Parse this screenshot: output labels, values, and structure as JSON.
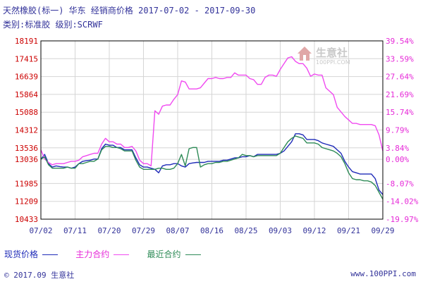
{
  "header": {
    "line1": "天然橡胶(标一)  华东  经销商价格  2017-07-02 - 2017-09-30",
    "line2": "类别:标准胶  级别:SCRWF"
  },
  "watermark": {
    "name": "生意社",
    "url": "100PPI.COM"
  },
  "legend": [
    {
      "label": "现货价格",
      "color": "#1f2bb8",
      "text_color": "#1f2bb8"
    },
    {
      "label": "主力合约",
      "color": "#f04af0",
      "text_color": "#e62ad8"
    },
    {
      "label": "最近合约",
      "color": "#2e8b57",
      "text_color": "#2e8b57"
    }
  ],
  "footer": {
    "left": "© 2017.09 生意社",
    "right": "www.100PPI.com"
  },
  "colors": {
    "frame": "#000000",
    "grid": "#d5d5d5",
    "zero_line": "#d5d5d5",
    "left_axis": "#cc0000",
    "right_axis": "#e62ad8",
    "x_axis": "#33339a"
  },
  "chart_data": {
    "type": "line",
    "x_ticks": [
      "07/02",
      "07/11",
      "07/20",
      "07/29",
      "08/07",
      "08/16",
      "08/25",
      "09/03",
      "09/12",
      "09/21",
      "09/29"
    ],
    "x_days": 90,
    "y_left_ticks": [
      "18191",
      "17415",
      "16639",
      "15864",
      "15088",
      "14312",
      "13536",
      "13036",
      "11985",
      "11209",
      "10433"
    ],
    "y_left_values": [
      18191,
      17415,
      16639,
      15864,
      15088,
      14312,
      13536,
      13036,
      11985,
      11209,
      10433
    ],
    "y_right_ticks": [
      "39.54%",
      "33.59%",
      "27.64%",
      "21.69%",
      "15.74%",
      "9.79%",
      "3.84%",
      "0.00%",
      "-8.07%",
      "-14.02%",
      "-19.97%"
    ],
    "ylim_left": [
      10433,
      18191
    ],
    "series": [
      {
        "name": "现货价格",
        "color": "#1f2bb8",
        "points": [
          [
            0,
            13036
          ],
          [
            1,
            13250
          ],
          [
            2,
            12850
          ],
          [
            3,
            12700
          ],
          [
            4,
            12750
          ],
          [
            5,
            12720
          ],
          [
            6,
            12700
          ],
          [
            7,
            12700
          ],
          [
            8,
            12650
          ],
          [
            9,
            12700
          ],
          [
            10,
            12850
          ],
          [
            11,
            12950
          ],
          [
            12,
            12980
          ],
          [
            13,
            13000
          ],
          [
            14,
            13050
          ],
          [
            15,
            13050
          ],
          [
            16,
            13500
          ],
          [
            17,
            13700
          ],
          [
            18,
            13650
          ],
          [
            19,
            13650
          ],
          [
            20,
            13550
          ],
          [
            21,
            13550
          ],
          [
            22,
            13450
          ],
          [
            23,
            13450
          ],
          [
            24,
            13450
          ],
          [
            25,
            13100
          ],
          [
            26,
            12800
          ],
          [
            27,
            12700
          ],
          [
            28,
            12700
          ],
          [
            29,
            12650
          ],
          [
            30,
            12600
          ],
          [
            31,
            12450
          ],
          [
            32,
            12750
          ],
          [
            33,
            12800
          ],
          [
            34,
            12800
          ],
          [
            35,
            12850
          ],
          [
            36,
            12850
          ],
          [
            37,
            12750
          ],
          [
            38,
            12700
          ],
          [
            39,
            12850
          ],
          [
            40,
            12880
          ],
          [
            41,
            12900
          ],
          [
            42,
            12900
          ],
          [
            43,
            12900
          ],
          [
            44,
            12950
          ],
          [
            45,
            12950
          ],
          [
            46,
            12950
          ],
          [
            47,
            12950
          ],
          [
            48,
            13000
          ],
          [
            49,
            13000
          ],
          [
            50,
            13050
          ],
          [
            51,
            13100
          ],
          [
            52,
            13100
          ],
          [
            53,
            13150
          ],
          [
            54,
            13150
          ],
          [
            55,
            13200
          ],
          [
            56,
            13150
          ],
          [
            57,
            13250
          ],
          [
            58,
            13250
          ],
          [
            59,
            13250
          ],
          [
            60,
            13250
          ],
          [
            61,
            13250
          ],
          [
            62,
            13250
          ],
          [
            63,
            13300
          ],
          [
            64,
            13400
          ],
          [
            65,
            13600
          ],
          [
            66,
            13800
          ],
          [
            67,
            14150
          ],
          [
            68,
            14150
          ],
          [
            69,
            14100
          ],
          [
            70,
            13900
          ],
          [
            71,
            13900
          ],
          [
            72,
            13900
          ],
          [
            73,
            13850
          ],
          [
            74,
            13750
          ],
          [
            75,
            13700
          ],
          [
            76,
            13650
          ],
          [
            77,
            13600
          ],
          [
            78,
            13450
          ],
          [
            79,
            13300
          ],
          [
            80,
            12950
          ],
          [
            81,
            12700
          ],
          [
            82,
            12500
          ],
          [
            83,
            12450
          ],
          [
            84,
            12400
          ],
          [
            85,
            12400
          ],
          [
            86,
            12400
          ],
          [
            87,
            12400
          ],
          [
            88,
            12200
          ],
          [
            89,
            11700
          ],
          [
            90,
            11500
          ]
        ]
      },
      {
        "name": "主力合约",
        "color": "#f04af0",
        "points": [
          [
            0,
            13450
          ],
          [
            1,
            13050
          ],
          [
            2,
            12900
          ],
          [
            3,
            12800
          ],
          [
            4,
            12850
          ],
          [
            5,
            12850
          ],
          [
            6,
            12850
          ],
          [
            7,
            12900
          ],
          [
            8,
            12950
          ],
          [
            9,
            12950
          ],
          [
            10,
            13000
          ],
          [
            11,
            13150
          ],
          [
            12,
            13200
          ],
          [
            13,
            13250
          ],
          [
            14,
            13300
          ],
          [
            15,
            13300
          ],
          [
            16,
            13700
          ],
          [
            17,
            13950
          ],
          [
            18,
            13800
          ],
          [
            19,
            13800
          ],
          [
            20,
            13700
          ],
          [
            21,
            13700
          ],
          [
            22,
            13550
          ],
          [
            23,
            13550
          ],
          [
            24,
            13600
          ],
          [
            25,
            13400
          ],
          [
            26,
            13000
          ],
          [
            27,
            12850
          ],
          [
            28,
            12850
          ],
          [
            29,
            12750
          ],
          [
            30,
            15150
          ],
          [
            31,
            15000
          ],
          [
            32,
            15350
          ],
          [
            33,
            15400
          ],
          [
            34,
            15400
          ],
          [
            35,
            15650
          ],
          [
            36,
            15850
          ],
          [
            37,
            16450
          ],
          [
            38,
            16400
          ],
          [
            39,
            16100
          ],
          [
            40,
            16100
          ],
          [
            41,
            16100
          ],
          [
            42,
            16150
          ],
          [
            43,
            16350
          ],
          [
            44,
            16550
          ],
          [
            45,
            16550
          ],
          [
            46,
            16600
          ],
          [
            47,
            16550
          ],
          [
            48,
            16550
          ],
          [
            49,
            16600
          ],
          [
            50,
            16600
          ],
          [
            51,
            16800
          ],
          [
            52,
            16700
          ],
          [
            53,
            16700
          ],
          [
            54,
            16700
          ],
          [
            55,
            16550
          ],
          [
            56,
            16500
          ],
          [
            57,
            16300
          ],
          [
            58,
            16300
          ],
          [
            59,
            16600
          ],
          [
            60,
            16700
          ],
          [
            61,
            16700
          ],
          [
            62,
            16650
          ],
          [
            63,
            16950
          ],
          [
            64,
            17200
          ],
          [
            65,
            17450
          ],
          [
            66,
            17500
          ],
          [
            67,
            17300
          ],
          [
            68,
            17200
          ],
          [
            69,
            17200
          ],
          [
            70,
            17000
          ],
          [
            71,
            16650
          ],
          [
            72,
            16750
          ],
          [
            73,
            16700
          ],
          [
            74,
            16700
          ],
          [
            75,
            16150
          ],
          [
            76,
            16000
          ],
          [
            77,
            15850
          ],
          [
            78,
            15300
          ],
          [
            79,
            15100
          ],
          [
            80,
            14900
          ],
          [
            81,
            14750
          ],
          [
            82,
            14600
          ],
          [
            83,
            14600
          ],
          [
            84,
            14550
          ],
          [
            85,
            14550
          ],
          [
            86,
            14550
          ],
          [
            87,
            14550
          ],
          [
            88,
            14500
          ],
          [
            89,
            14100
          ],
          [
            90,
            13400
          ]
        ]
      },
      {
        "name": "最近合约",
        "color": "#2e8b57",
        "points": [
          [
            0,
            13036
          ],
          [
            1,
            13150
          ],
          [
            2,
            12800
          ],
          [
            3,
            12650
          ],
          [
            4,
            12650
          ],
          [
            5,
            12650
          ],
          [
            6,
            12650
          ],
          [
            7,
            12700
          ],
          [
            8,
            12650
          ],
          [
            9,
            12650
          ],
          [
            10,
            12850
          ],
          [
            11,
            12850
          ],
          [
            12,
            12900
          ],
          [
            13,
            12950
          ],
          [
            14,
            12950
          ],
          [
            15,
            13050
          ],
          [
            16,
            13450
          ],
          [
            17,
            13600
          ],
          [
            18,
            13600
          ],
          [
            19,
            13550
          ],
          [
            20,
            13550
          ],
          [
            21,
            13500
          ],
          [
            22,
            13400
          ],
          [
            23,
            13400
          ],
          [
            24,
            13400
          ],
          [
            25,
            13000
          ],
          [
            26,
            12700
          ],
          [
            27,
            12600
          ],
          [
            28,
            12600
          ],
          [
            29,
            12600
          ],
          [
            30,
            12600
          ],
          [
            31,
            12650
          ],
          [
            32,
            12650
          ],
          [
            33,
            12600
          ],
          [
            34,
            12600
          ],
          [
            35,
            12650
          ],
          [
            36,
            12850
          ],
          [
            37,
            13250
          ],
          [
            38,
            12750
          ],
          [
            39,
            13500
          ],
          [
            40,
            13550
          ],
          [
            41,
            13550
          ],
          [
            42,
            12700
          ],
          [
            43,
            12800
          ],
          [
            44,
            12850
          ],
          [
            45,
            12850
          ],
          [
            46,
            12900
          ],
          [
            47,
            12900
          ],
          [
            48,
            12950
          ],
          [
            49,
            12950
          ],
          [
            50,
            13000
          ],
          [
            51,
            13050
          ],
          [
            52,
            13100
          ],
          [
            53,
            13250
          ],
          [
            54,
            13200
          ],
          [
            55,
            13200
          ],
          [
            56,
            13150
          ],
          [
            57,
            13200
          ],
          [
            58,
            13200
          ],
          [
            59,
            13200
          ],
          [
            60,
            13200
          ],
          [
            61,
            13200
          ],
          [
            62,
            13200
          ],
          [
            63,
            13300
          ],
          [
            64,
            13550
          ],
          [
            65,
            13800
          ],
          [
            66,
            13950
          ],
          [
            67,
            14050
          ],
          [
            68,
            14000
          ],
          [
            69,
            13950
          ],
          [
            70,
            13750
          ],
          [
            71,
            13750
          ],
          [
            72,
            13750
          ],
          [
            73,
            13700
          ],
          [
            74,
            13550
          ],
          [
            75,
            13500
          ],
          [
            76,
            13450
          ],
          [
            77,
            13400
          ],
          [
            78,
            13300
          ],
          [
            79,
            13150
          ],
          [
            80,
            12850
          ],
          [
            81,
            12450
          ],
          [
            82,
            12200
          ],
          [
            83,
            12150
          ],
          [
            84,
            12150
          ],
          [
            85,
            12100
          ],
          [
            86,
            12100
          ],
          [
            87,
            12050
          ],
          [
            88,
            11900
          ],
          [
            89,
            11600
          ],
          [
            90,
            11300
          ]
        ]
      }
    ]
  }
}
